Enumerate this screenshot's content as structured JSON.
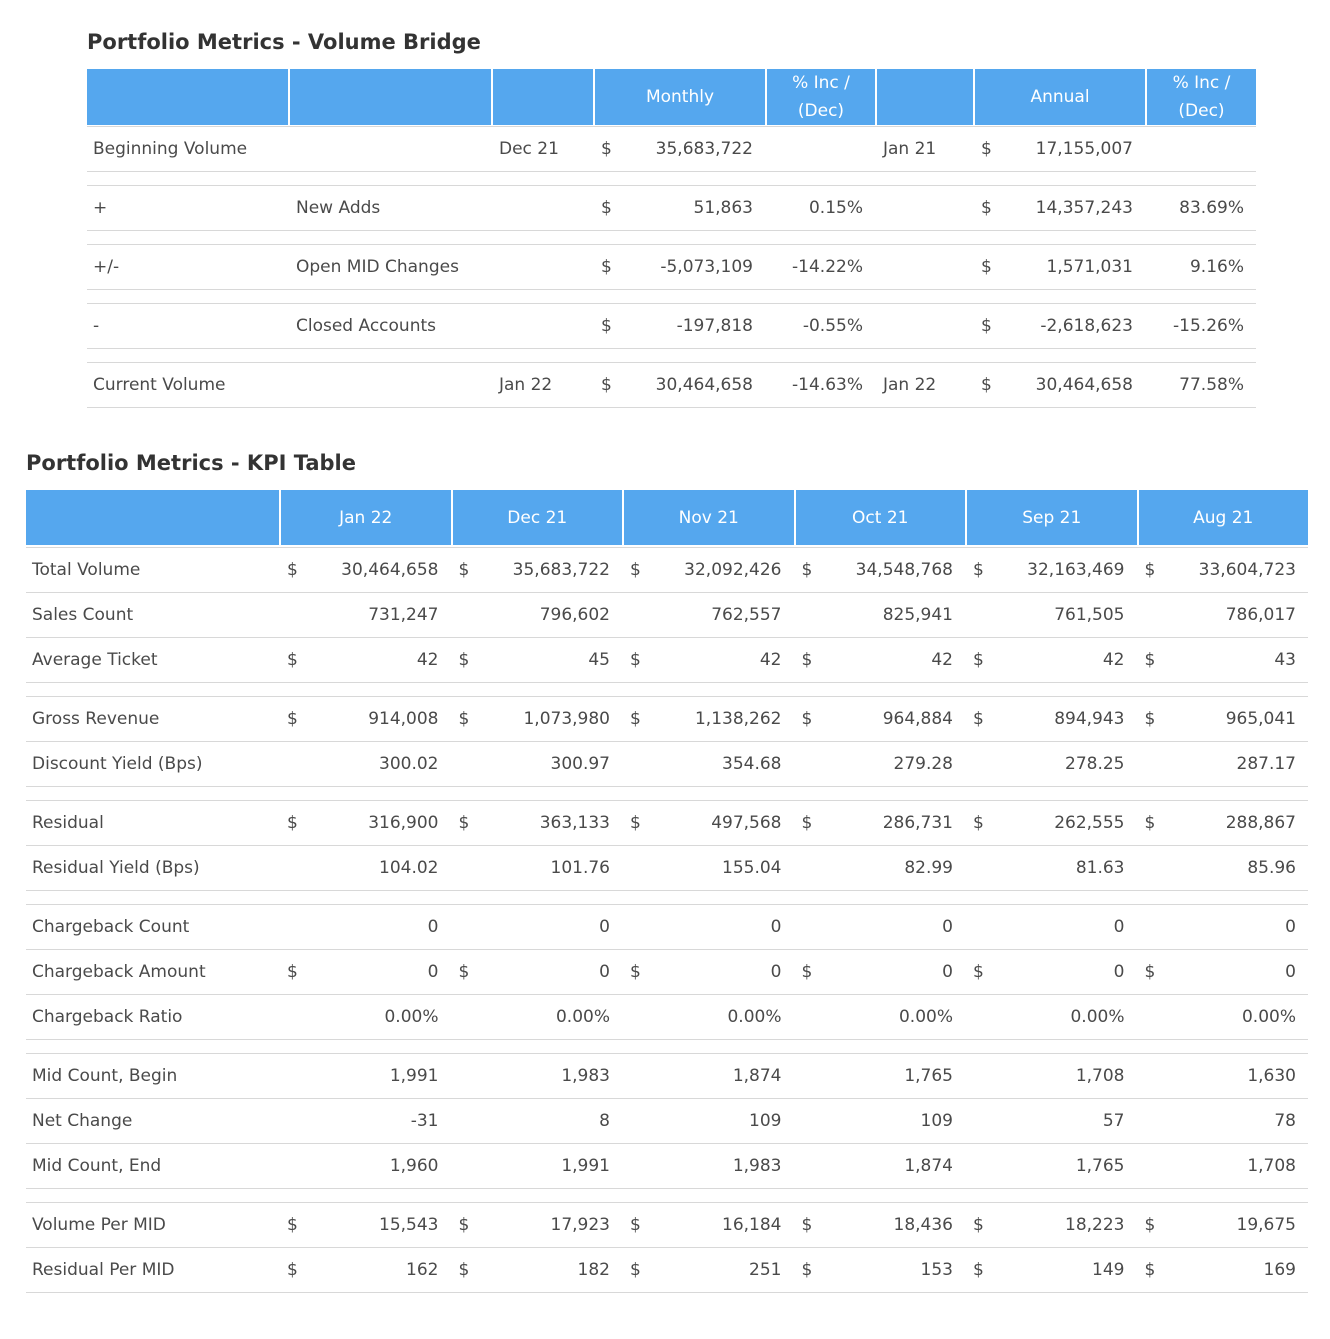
{
  "bridge": {
    "title": "Portfolio Metrics - Volume Bridge",
    "header": {
      "monthly": "Monthly",
      "monthly_pct": "% Inc / (Dec)",
      "annual": "Annual",
      "annual_pct": "% Inc / (Dec)"
    },
    "rows": [
      {
        "label": "Beginning Volume",
        "monthly_date": "Dec 21",
        "currency": "$",
        "monthly": "35,683,722",
        "annual_date": "Jan 21",
        "annual": "17,155,007"
      },
      {
        "label": "+",
        "sub": "New Adds",
        "currency": "$",
        "monthly": "51,863",
        "monthly_pct": "0.15%",
        "annual": "14,357,243",
        "annual_pct": "83.69%"
      },
      {
        "label": "+/-",
        "sub": "Open MID Changes",
        "currency": "$",
        "monthly": "-5,073,109",
        "monthly_pct": "-14.22%",
        "annual": "1,571,031",
        "annual_pct": "9.16%"
      },
      {
        "label": "-",
        "sub": "Closed Accounts",
        "currency": "$",
        "monthly": "-197,818",
        "monthly_pct": "-0.55%",
        "annual": "-2,618,623",
        "annual_pct": "-15.26%"
      },
      {
        "label": "Current Volume",
        "monthly_date": "Jan 22",
        "currency": "$",
        "monthly": "30,464,658",
        "monthly_pct": "-14.63%",
        "annual_date": "Jan 22",
        "annual": "30,464,658",
        "annual_pct": "77.58%"
      }
    ]
  },
  "kpi": {
    "title": "Portfolio Metrics - KPI Table",
    "columns": [
      "Jan 22",
      "Dec 21",
      "Nov 21",
      "Oct 21",
      "Sep 21",
      "Aug 21"
    ],
    "groups": [
      [
        {
          "label": "Total Volume",
          "currency": "$",
          "values": [
            "30,464,658",
            "35,683,722",
            "32,092,426",
            "34,548,768",
            "32,163,469",
            "33,604,723"
          ]
        },
        {
          "label": "Sales Count",
          "values": [
            "731,247",
            "796,602",
            "762,557",
            "825,941",
            "761,505",
            "786,017"
          ]
        },
        {
          "label": "Average Ticket",
          "currency": "$",
          "values": [
            "42",
            "45",
            "42",
            "42",
            "42",
            "43"
          ]
        }
      ],
      [
        {
          "label": "Gross Revenue",
          "currency": "$",
          "values": [
            "914,008",
            "1,073,980",
            "1,138,262",
            "964,884",
            "894,943",
            "965,041"
          ]
        },
        {
          "label": "Discount Yield (Bps)",
          "values": [
            "300.02",
            "300.97",
            "354.68",
            "279.28",
            "278.25",
            "287.17"
          ]
        }
      ],
      [
        {
          "label": "Residual",
          "currency": "$",
          "values": [
            "316,900",
            "363,133",
            "497,568",
            "286,731",
            "262,555",
            "288,867"
          ]
        },
        {
          "label": "Residual Yield (Bps)",
          "values": [
            "104.02",
            "101.76",
            "155.04",
            "82.99",
            "81.63",
            "85.96"
          ]
        }
      ],
      [
        {
          "label": "Chargeback Count",
          "values": [
            "0",
            "0",
            "0",
            "0",
            "0",
            "0"
          ]
        },
        {
          "label": "Chargeback Amount",
          "currency": "$",
          "values": [
            "0",
            "0",
            "0",
            "0",
            "0",
            "0"
          ]
        },
        {
          "label": "Chargeback Ratio",
          "values": [
            "0.00%",
            "0.00%",
            "0.00%",
            "0.00%",
            "0.00%",
            "0.00%"
          ]
        }
      ],
      [
        {
          "label": "Mid Count, Begin",
          "values": [
            "1,991",
            "1,983",
            "1,874",
            "1,765",
            "1,708",
            "1,630"
          ]
        },
        {
          "label": "Net Change",
          "values": [
            "-31",
            "8",
            "109",
            "109",
            "57",
            "78"
          ]
        },
        {
          "label": "Mid Count, End",
          "values": [
            "1,960",
            "1,991",
            "1,983",
            "1,874",
            "1,765",
            "1,708"
          ]
        }
      ],
      [
        {
          "label": "Volume Per MID",
          "currency": "$",
          "values": [
            "15,543",
            "17,923",
            "16,184",
            "18,436",
            "18,223",
            "19,675"
          ]
        },
        {
          "label": "Residual Per MID",
          "currency": "$",
          "values": [
            "162",
            "182",
            "251",
            "153",
            "149",
            "169"
          ]
        }
      ]
    ]
  }
}
